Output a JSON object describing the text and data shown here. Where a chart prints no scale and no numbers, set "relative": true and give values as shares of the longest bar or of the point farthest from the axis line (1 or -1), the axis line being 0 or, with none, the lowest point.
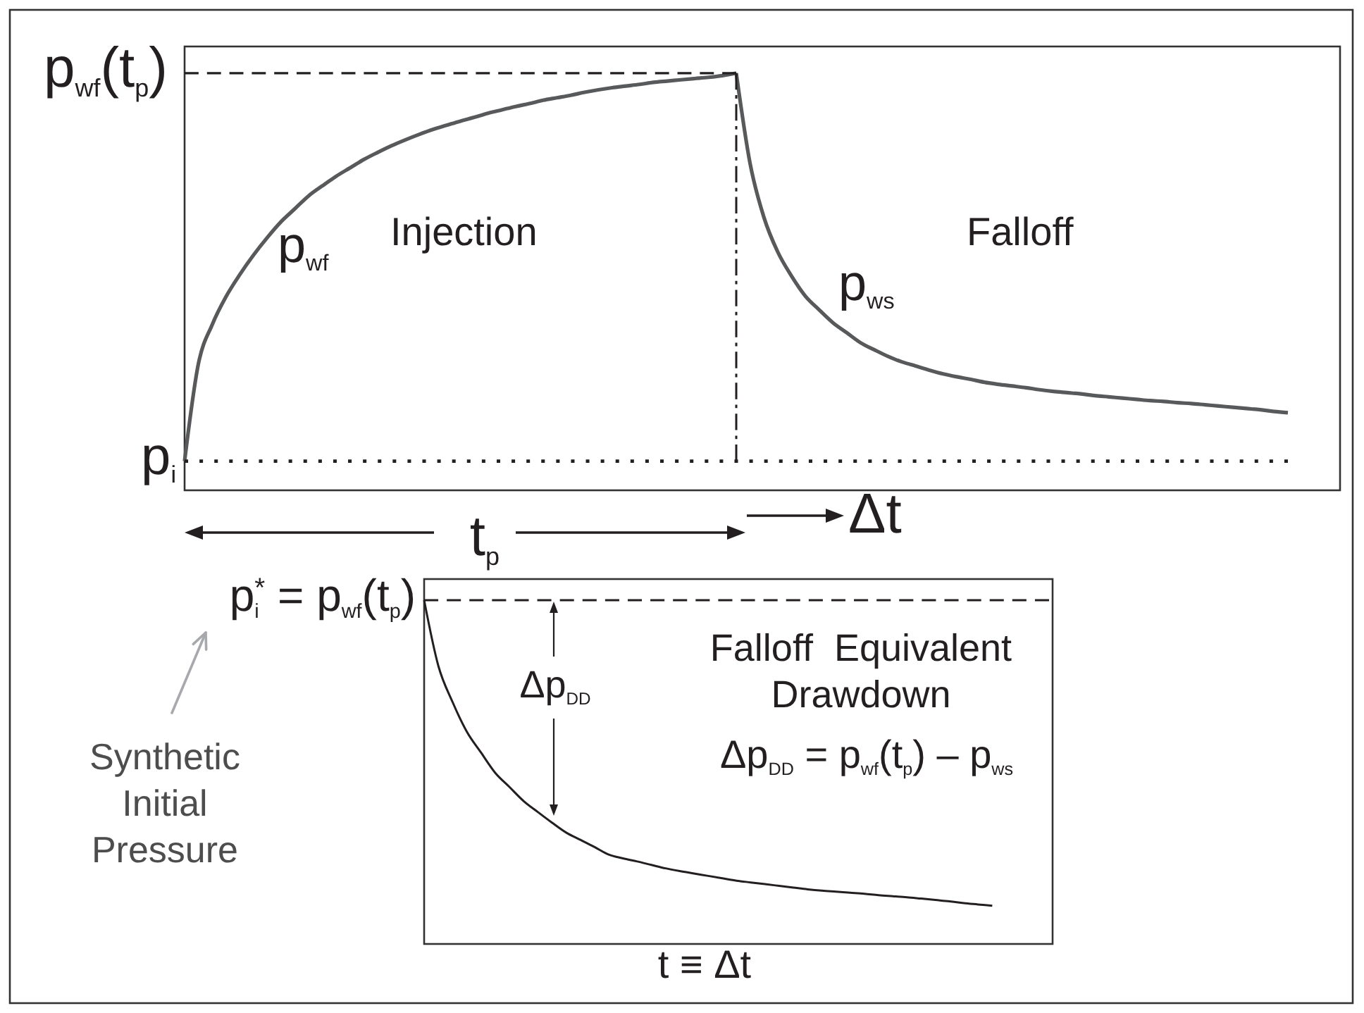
{
  "chart_data": [
    {
      "type": "line",
      "relative": true,
      "categories": [
        null,
        null,
        null,
        null,
        null,
        null,
        null,
        null,
        null,
        null,
        null,
        null,
        null,
        null,
        null,
        null,
        null,
        null,
        null,
        null,
        null,
        null,
        null,
        null,
        null,
        null,
        null,
        null,
        null,
        null,
        null,
        null,
        null,
        null,
        null,
        null,
        null,
        null,
        null,
        null,
        null,
        null,
        null,
        null,
        null,
        null,
        null,
        null,
        null,
        null,
        null,
        null,
        null,
        null,
        null,
        null,
        null,
        null,
        null,
        null,
        null,
        null,
        null,
        null,
        null,
        null,
        null,
        null,
        null,
        null,
        null,
        null,
        null,
        null,
        null,
        null,
        null,
        null,
        null,
        null,
        null
      ],
      "series": [
        {
          "name": "p$_{wf}$",
          "color": "#58595b",
          "values": [
            0.07,
            0.303,
            0.397,
            0.464,
            0.517,
            0.564,
            0.606,
            0.644,
            0.675,
            0.706,
            0.73,
            0.753,
            0.773,
            0.793,
            0.81,
            0.826,
            0.84,
            0.853,
            0.865,
            0.875,
            0.885,
            0.894,
            0.904,
            0.912,
            0.92,
            0.927,
            0.935,
            0.941,
            0.947,
            0.954,
            0.96,
            0.965,
            0.969,
            0.973,
            0.978,
            0.981,
            0.984,
            0.987,
            0.99,
            0.994,
            1,
            null,
            null,
            null,
            null,
            null,
            null,
            null,
            null,
            null,
            null,
            null,
            null,
            null,
            null,
            null,
            null,
            null,
            null,
            null,
            null,
            null,
            null,
            null,
            null,
            null,
            null,
            null,
            null,
            null,
            null,
            null,
            null,
            null,
            null,
            null,
            null,
            null,
            null,
            null,
            null
          ]
        },
        {
          "name": "p$_{ws}$",
          "color": "#58595b",
          "values": [
            null,
            null,
            null,
            null,
            null,
            null,
            null,
            null,
            null,
            null,
            null,
            null,
            null,
            null,
            null,
            null,
            null,
            null,
            null,
            null,
            null,
            null,
            null,
            null,
            null,
            null,
            null,
            null,
            null,
            null,
            null,
            null,
            null,
            null,
            null,
            null,
            null,
            null,
            null,
            null,
            1,
            0.784,
            0.655,
            0.572,
            0.514,
            0.466,
            0.433,
            0.402,
            0.378,
            0.354,
            0.337,
            0.321,
            0.308,
            0.298,
            0.288,
            0.279,
            0.272,
            0.266,
            0.259,
            0.254,
            0.25,
            0.246,
            0.241,
            0.237,
            0.234,
            0.231,
            0.227,
            0.224,
            0.221,
            0.218,
            0.215,
            0.213,
            0.21,
            0.208,
            0.205,
            0.202,
            0.199,
            0.196,
            0.193,
            0.189,
            0.186
          ]
        },
        {
          "name": "p$_{wf}$(t$_{p}$)",
          "color": "#231f20",
          "line_style": "dashed",
          "values": [
            1,
            1,
            1,
            1,
            1,
            1,
            1,
            1,
            1,
            1,
            1,
            1,
            1,
            1,
            1,
            1,
            1,
            1,
            1,
            1,
            1,
            1,
            1,
            1,
            1,
            1,
            1,
            1,
            1,
            1,
            1,
            1,
            1,
            1,
            1,
            1,
            1,
            1,
            1,
            1,
            1,
            null,
            null,
            null,
            null,
            null,
            null,
            null,
            null,
            null,
            null,
            null,
            null,
            null,
            null,
            null,
            null,
            null,
            null,
            null,
            null,
            null,
            null,
            null,
            null,
            null,
            null,
            null,
            null,
            null,
            null,
            null,
            null,
            null,
            null,
            null,
            null,
            null,
            null,
            null,
            null
          ]
        },
        {
          "name": "p$_{i}$",
          "color": "#231f20",
          "line_style": "dotted",
          "values": [
            0.07,
            0.07,
            0.07,
            0.07,
            0.07,
            0.07,
            0.07,
            0.07,
            0.07,
            0.07,
            0.07,
            0.07,
            0.07,
            0.07,
            0.07,
            0.07,
            0.07,
            0.07,
            0.07,
            0.07,
            0.07,
            0.07,
            0.07,
            0.07,
            0.07,
            0.07,
            0.07,
            0.07,
            0.07,
            0.07,
            0.07,
            0.07,
            0.07,
            0.07,
            0.07,
            0.07,
            0.07,
            0.07,
            0.07,
            0.07,
            0.07,
            0.07,
            0.07,
            0.07,
            0.07,
            0.07,
            0.07,
            0.07,
            0.07,
            0.07,
            0.07,
            0.07,
            0.07,
            0.07,
            0.07,
            0.07,
            0.07,
            0.07,
            0.07,
            0.07,
            0.07,
            0.07,
            0.07,
            0.07,
            0.07,
            0.07,
            0.07,
            0.07,
            0.07,
            0.07,
            0.07,
            0.07,
            0.07,
            0.07,
            0.07,
            0.07,
            0.07,
            0.07,
            0.07,
            0.07,
            0.07
          ]
        }
      ],
      "annotations": [
        "Injection",
        "Falloff",
        "t$_{p}$",
        "Δt"
      ]
    },
    {
      "type": "line",
      "relative": true,
      "categories": [
        null,
        null,
        null,
        null,
        null,
        null,
        null,
        null,
        null,
        null,
        null,
        null,
        null,
        null,
        null,
        null,
        null,
        null,
        null,
        null,
        null,
        null,
        null,
        null,
        null,
        null,
        null,
        null,
        null,
        null,
        null,
        null,
        null,
        null,
        null,
        null,
        null,
        null,
        null,
        null,
        null,
        null,
        null,
        null,
        null
      ],
      "xlabel": "t ≡ Δt",
      "series": [
        {
          "color": "#231f20",
          "values": [
            1,
            0.809,
            0.704,
            0.618,
            0.557,
            0.498,
            0.457,
            0.416,
            0.384,
            0.353,
            0.324,
            0.303,
            0.282,
            0.26,
            0.249,
            0.24,
            0.23,
            0.22,
            0.212,
            0.205,
            0.198,
            0.191,
            0.184,
            0.179,
            0.174,
            0.169,
            0.164,
            0.159,
            0.155,
            0.152,
            0.149,
            0.146,
            0.142,
            0.139,
            0.136,
            0.132,
            0.128,
            0.124,
            0.119,
            0.115,
            0.111,
            null,
            null,
            null,
            null
          ]
        },
        {
          "name": "p$_{i}$$^{*}$ = p$_{wf}$(t$_{p}$)",
          "color": "#231f20",
          "line_style": "dashed",
          "values": [
            1,
            1,
            1,
            1,
            1,
            1,
            1,
            1,
            1,
            1,
            1,
            1,
            1,
            1,
            1,
            1,
            1,
            1,
            1,
            1,
            1,
            1,
            1,
            1,
            1,
            1,
            1,
            1,
            1,
            1,
            1,
            1,
            1,
            1,
            1,
            1,
            1,
            1,
            1,
            1,
            1,
            1,
            1,
            1,
            1
          ]
        }
      ],
      "annotations": [
        "Falloff  Equivalent Drawdown",
        "Δp$_{DD}$ = p$_{wf}$(t$_{p}$) – p$_{ws}$",
        "Δp$_{DD}$",
        "Synthetic Initial Pressure"
      ]
    }
  ]
}
